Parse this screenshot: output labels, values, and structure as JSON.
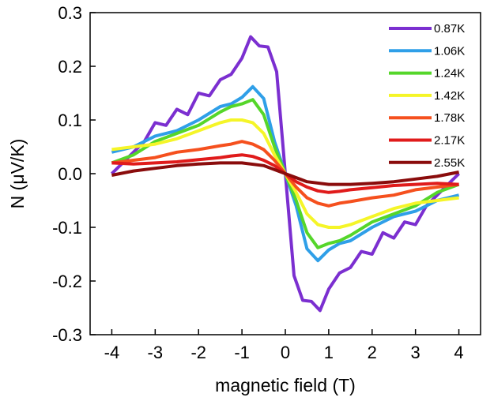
{
  "chart_data": {
    "type": "line",
    "title": "",
    "xlabel": "magnetic field (T)",
    "ylabel": "N (μV/K)",
    "xlim": [
      -4.5,
      4.5
    ],
    "ylim": [
      -0.3,
      0.3
    ],
    "xticks": [
      -4,
      -3,
      -2,
      -1,
      0,
      1,
      2,
      3,
      4
    ],
    "yticks": [
      -0.3,
      -0.2,
      -0.1,
      0.0,
      0.1,
      0.2,
      0.3
    ],
    "xtick_labels": [
      "-4",
      "-3",
      "-2",
      "-1",
      "0",
      "1",
      "2",
      "3",
      "4"
    ],
    "ytick_labels": [
      "-0.3",
      "-0.2",
      "-0.1",
      "0.0",
      "0.1",
      "0.2",
      "0.3"
    ],
    "grid": false,
    "legend_position": "top-right",
    "series": [
      {
        "name": "0.87K",
        "color": "#7b2fd0",
        "x": [
          -4,
          -3.75,
          -3.5,
          -3.25,
          -3,
          -2.75,
          -2.5,
          -2.25,
          -2,
          -1.75,
          -1.5,
          -1.25,
          -1,
          -0.8,
          -0.6,
          -0.4,
          -0.2,
          0,
          0.2,
          0.4,
          0.6,
          0.8,
          1,
          1.25,
          1.5,
          1.75,
          2,
          2.25,
          2.5,
          2.75,
          3,
          3.25,
          3.5,
          3.75,
          4
        ],
        "y": [
          0.0,
          0.02,
          0.04,
          0.06,
          0.095,
          0.09,
          0.12,
          0.11,
          0.15,
          0.145,
          0.175,
          0.185,
          0.215,
          0.255,
          0.238,
          0.236,
          0.19,
          0.0,
          -0.19,
          -0.236,
          -0.238,
          -0.255,
          -0.215,
          -0.185,
          -0.175,
          -0.145,
          -0.15,
          -0.11,
          -0.12,
          -0.09,
          -0.095,
          -0.06,
          -0.04,
          -0.02,
          0.0
        ]
      },
      {
        "name": "1.06K",
        "color": "#2f9fe8",
        "x": [
          -4,
          -3.5,
          -3,
          -2.5,
          -2,
          -1.5,
          -1.25,
          -1,
          -0.75,
          -0.5,
          -0.25,
          0,
          0.25,
          0.5,
          0.75,
          1,
          1.25,
          1.5,
          2,
          2.5,
          3,
          3.5,
          4
        ],
        "y": [
          0.04,
          0.05,
          0.07,
          0.08,
          0.1,
          0.125,
          0.13,
          0.142,
          0.162,
          0.14,
          0.06,
          0.0,
          -0.06,
          -0.14,
          -0.162,
          -0.142,
          -0.13,
          -0.125,
          -0.1,
          -0.08,
          -0.07,
          -0.05,
          -0.04
        ]
      },
      {
        "name": "1.24K",
        "color": "#55d62a",
        "x": [
          -4,
          -3.5,
          -3,
          -2.5,
          -2,
          -1.5,
          -1.25,
          -1,
          -0.75,
          -0.5,
          -0.25,
          0,
          0.25,
          0.5,
          0.75,
          1,
          1.25,
          1.5,
          2,
          2.5,
          3,
          3.5,
          4
        ],
        "y": [
          0.02,
          0.035,
          0.06,
          0.075,
          0.09,
          0.115,
          0.125,
          0.13,
          0.138,
          0.11,
          0.05,
          0.0,
          -0.05,
          -0.11,
          -0.138,
          -0.13,
          -0.125,
          -0.115,
          -0.09,
          -0.075,
          -0.06,
          -0.035,
          -0.02
        ]
      },
      {
        "name": "1.42K",
        "color": "#f5f528",
        "x": [
          -4,
          -3.5,
          -3,
          -2.5,
          -2,
          -1.5,
          -1.25,
          -1,
          -0.75,
          -0.5,
          -0.25,
          0,
          0.25,
          0.5,
          0.75,
          1,
          1.25,
          1.5,
          2,
          2.5,
          3,
          3.5,
          4
        ],
        "y": [
          0.045,
          0.05,
          0.055,
          0.065,
          0.08,
          0.095,
          0.1,
          0.1,
          0.095,
          0.075,
          0.035,
          0.0,
          -0.035,
          -0.075,
          -0.095,
          -0.1,
          -0.1,
          -0.095,
          -0.08,
          -0.065,
          -0.055,
          -0.05,
          -0.045
        ]
      },
      {
        "name": "1.78K",
        "color": "#f5501e",
        "x": [
          -4,
          -3.5,
          -3,
          -2.5,
          -2,
          -1.5,
          -1.25,
          -1,
          -0.75,
          -0.5,
          -0.25,
          0,
          0.25,
          0.5,
          0.75,
          1,
          1.25,
          1.5,
          2,
          2.5,
          3,
          3.5,
          4
        ],
        "y": [
          0.02,
          0.025,
          0.03,
          0.04,
          0.045,
          0.052,
          0.055,
          0.06,
          0.055,
          0.045,
          0.025,
          0.0,
          -0.025,
          -0.045,
          -0.055,
          -0.06,
          -0.055,
          -0.052,
          -0.045,
          -0.04,
          -0.03,
          -0.025,
          -0.02
        ]
      },
      {
        "name": "2.17K",
        "color": "#e01b1b",
        "x": [
          -4,
          -3.5,
          -3,
          -2.5,
          -2,
          -1.5,
          -1.25,
          -1,
          -0.75,
          -0.5,
          -0.25,
          0,
          0.25,
          0.5,
          0.75,
          1,
          1.25,
          1.5,
          2,
          2.5,
          3,
          3.5,
          4
        ],
        "y": [
          0.02,
          0.018,
          0.02,
          0.022,
          0.026,
          0.03,
          0.033,
          0.035,
          0.032,
          0.025,
          0.015,
          0.0,
          -0.015,
          -0.025,
          -0.032,
          -0.035,
          -0.033,
          -0.03,
          -0.026,
          -0.022,
          -0.02,
          -0.018,
          -0.02
        ]
      },
      {
        "name": "2.55K",
        "color": "#8a0c0c",
        "x": [
          -4,
          -3.5,
          -3,
          -2.5,
          -2,
          -1.5,
          -1,
          -0.5,
          0,
          0.5,
          1,
          1.5,
          2,
          2.5,
          3,
          3.5,
          4
        ],
        "y": [
          -0.003,
          0.005,
          0.01,
          0.015,
          0.018,
          0.02,
          0.02,
          0.015,
          0.0,
          -0.015,
          -0.02,
          -0.02,
          -0.018,
          -0.015,
          -0.01,
          -0.005,
          0.003
        ]
      }
    ]
  }
}
